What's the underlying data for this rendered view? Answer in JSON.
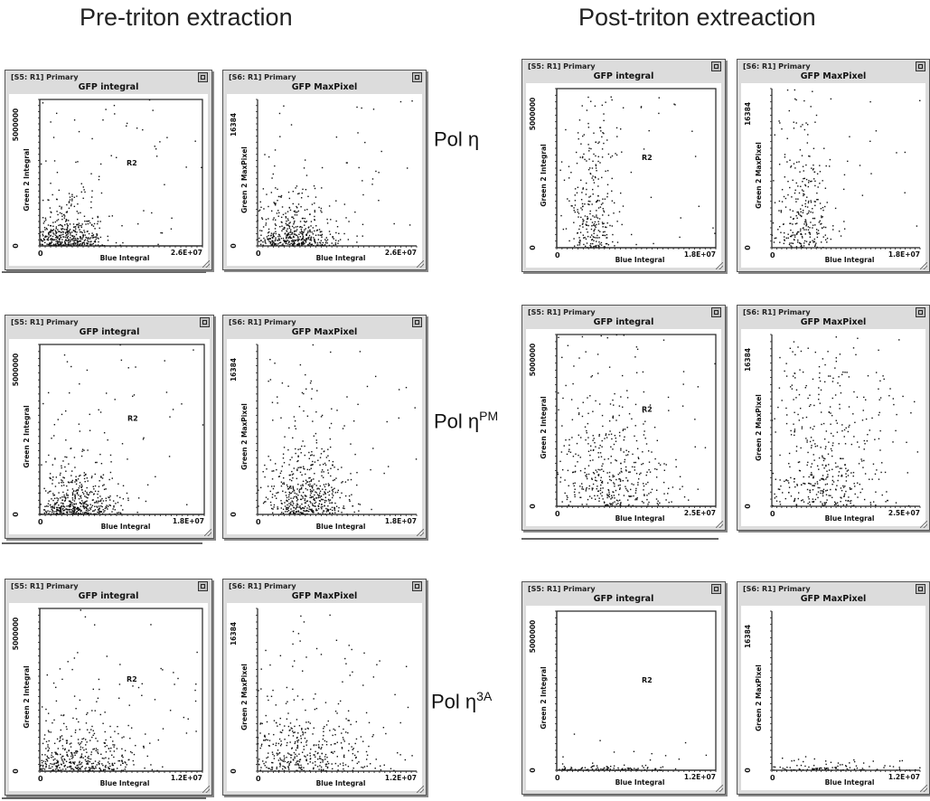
{
  "headers": {
    "pre": "Pre-triton extraction",
    "post": "Post-triton extreaction"
  },
  "rows": [
    {
      "label": "Pol η",
      "sup": ""
    },
    {
      "label": "Pol η",
      "sup": "PM"
    },
    {
      "label": "Pol η",
      "sup": "3A"
    }
  ],
  "chart_data": [
    {
      "type": "scatter",
      "window": "[S5: R1] Primary",
      "title": "GFP integral",
      "xlabel": "Blue Integral",
      "ylabel": "Green 2 Integral",
      "x_tick_labels": [
        "0",
        "2.6E+07"
      ],
      "y_tick_labels": [
        "0",
        "5000000"
      ],
      "xlim": [
        0,
        26000000
      ],
      "ylim": [
        0,
        5000000
      ],
      "gate": "R2",
      "gate_rect": [
        0,
        0,
        26000000,
        5000000
      ],
      "condition": "Pol η",
      "phase": "Pre-triton extraction",
      "points": {
        "n": 520,
        "seed": 11,
        "x_center": 4500000,
        "x_spread": 3000000,
        "y_decay": 500000,
        "outlier_max": 5000000
      }
    },
    {
      "type": "scatter",
      "window": "[S6: R1] Primary",
      "title": "GFP MaxPixel",
      "xlabel": "Blue Integral",
      "ylabel": "Green 2 MaxPixel",
      "x_tick_labels": [
        "0",
        "2.6E+07"
      ],
      "y_tick_labels": [
        "0",
        "16384"
      ],
      "xlim": [
        0,
        26000000
      ],
      "ylim": [
        0,
        16384
      ],
      "condition": "Pol η",
      "phase": "Pre-triton extraction",
      "points": {
        "n": 520,
        "seed": 12,
        "x_center": 5500000,
        "x_spread": 3500000,
        "y_decay": 1800,
        "outlier_max": 16384
      }
    },
    {
      "type": "scatter",
      "window": "[S5: R1] Primary",
      "title": "GFP integral",
      "xlabel": "Blue Integral",
      "ylabel": "Green 2 Integral",
      "x_tick_labels": [
        "0",
        "1.8E+07"
      ],
      "y_tick_labels": [
        "0",
        "5000000"
      ],
      "xlim": [
        0,
        18000000
      ],
      "ylim": [
        0,
        5000000
      ],
      "gate": "R2",
      "gate_rect": [
        0,
        0,
        18000000,
        5000000
      ],
      "condition": "Pol η",
      "phase": "Post-triton extreaction",
      "points": {
        "n": 320,
        "seed": 13,
        "x_center": 4000000,
        "x_spread": 1500000,
        "y_decay": 1600000,
        "outlier_max": 5000000
      }
    },
    {
      "type": "scatter",
      "window": "[S6: R1] Primary",
      "title": "GFP MaxPixel",
      "xlabel": "Blue Integral",
      "ylabel": "Green 2 MaxPixel",
      "x_tick_labels": [
        "0",
        "1.8E+07"
      ],
      "y_tick_labels": [
        "0",
        "16384"
      ],
      "xlim": [
        0,
        18000000
      ],
      "ylim": [
        0,
        16384
      ],
      "condition": "Pol η",
      "phase": "Post-triton extreaction",
      "points": {
        "n": 320,
        "seed": 14,
        "x_center": 4000000,
        "x_spread": 1800000,
        "y_decay": 5000,
        "outlier_max": 16384
      }
    },
    {
      "type": "scatter",
      "window": "[S5: R1] Primary",
      "title": "GFP integral",
      "xlabel": "Blue Integral",
      "ylabel": "Green 2 Integral",
      "x_tick_labels": [
        "0",
        "1.8E+07"
      ],
      "y_tick_labels": [
        "0",
        "5000000"
      ],
      "xlim": [
        0,
        18000000
      ],
      "ylim": [
        0,
        5000000
      ],
      "gate": "R2",
      "gate_rect": [
        0,
        0,
        18000000,
        5000000
      ],
      "condition": "Pol ηPM",
      "phase": "Pre-triton extraction",
      "points": {
        "n": 560,
        "seed": 15,
        "x_center": 4000000,
        "x_spread": 2400000,
        "y_decay": 500000,
        "outlier_max": 5000000
      }
    },
    {
      "type": "scatter",
      "window": "[S6: R1] Primary",
      "title": "GFP MaxPixel",
      "xlabel": "Blue Integral",
      "ylabel": "Green 2 MaxPixel",
      "x_tick_labels": [
        "0",
        "1.8E+07"
      ],
      "y_tick_labels": [
        "0",
        "16384"
      ],
      "xlim": [
        0,
        18000000
      ],
      "ylim": [
        0,
        16384
      ],
      "condition": "Pol ηPM",
      "phase": "Pre-triton extraction",
      "points": {
        "n": 560,
        "seed": 16,
        "x_center": 5500000,
        "x_spread": 2600000,
        "y_decay": 2600,
        "outlier_max": 16384
      }
    },
    {
      "type": "scatter",
      "window": "[S5: R1] Primary",
      "title": "GFP integral",
      "xlabel": "Blue Integral",
      "ylabel": "Green 2 Integral",
      "x_tick_labels": [
        "0",
        "2.5E+07"
      ],
      "y_tick_labels": [
        "0",
        "5000000"
      ],
      "xlim": [
        0,
        25000000
      ],
      "ylim": [
        0,
        5000000
      ],
      "gate": "R2",
      "gate_rect": [
        0,
        0,
        25000000,
        5000000
      ],
      "condition": "Pol ηPM",
      "phase": "Post-triton extreaction",
      "points": {
        "n": 480,
        "seed": 17,
        "x_center": 8000000,
        "x_spread": 5000000,
        "y_decay": 1500000,
        "outlier_max": 5000000
      }
    },
    {
      "type": "scatter",
      "window": "[S6: R1] Primary",
      "title": "GFP MaxPixel",
      "xlabel": "Blue Integral",
      "ylabel": "Green 2 MaxPixel",
      "x_tick_labels": [
        "0",
        "2.5E+07"
      ],
      "y_tick_labels": [
        "0",
        "16384"
      ],
      "xlim": [
        0,
        25000000
      ],
      "ylim": [
        0,
        16384
      ],
      "condition": "Pol ηPM",
      "phase": "Post-triton extreaction",
      "points": {
        "n": 480,
        "seed": 18,
        "x_center": 9000000,
        "x_spread": 5000000,
        "y_decay": 5500,
        "outlier_max": 16384
      }
    },
    {
      "type": "scatter",
      "window": "[S5: R1] Primary",
      "title": "GFP integral",
      "xlabel": "Blue Integral",
      "ylabel": "Green 2 Integral",
      "x_tick_labels": [
        "0",
        "1.2E+07"
      ],
      "y_tick_labels": [
        "0",
        "5000000"
      ],
      "xlim": [
        0,
        12000000
      ],
      "ylim": [
        0,
        5000000
      ],
      "gate": "R2",
      "gate_rect": [
        0,
        0,
        12000000,
        5000000
      ],
      "condition": "Pol η3A",
      "phase": "Pre-triton extraction",
      "points": {
        "n": 520,
        "seed": 19,
        "x_center": 2500000,
        "x_spread": 2500000,
        "y_decay": 600000,
        "outlier_max": 5000000
      }
    },
    {
      "type": "scatter",
      "window": "[S6: R1] Primary",
      "title": "GFP MaxPixel",
      "xlabel": "Blue Integral",
      "ylabel": "Green 2 MaxPixel",
      "x_tick_labels": [
        "0",
        "1.2E+07"
      ],
      "y_tick_labels": [
        "0",
        "16384"
      ],
      "xlim": [
        0,
        12000000
      ],
      "ylim": [
        0,
        16384
      ],
      "condition": "Pol η3A",
      "phase": "Pre-triton extraction",
      "points": {
        "n": 520,
        "seed": 20,
        "x_center": 3000000,
        "x_spread": 3000000,
        "y_decay": 2800,
        "outlier_max": 16384
      }
    },
    {
      "type": "scatter",
      "window": "[S5: R1] Primary",
      "title": "GFP integral",
      "xlabel": "Blue Integral",
      "ylabel": "Green 2 Integral",
      "x_tick_labels": [
        "0",
        "1.2E+07"
      ],
      "y_tick_labels": [
        "0",
        "5000000"
      ],
      "xlim": [
        0,
        12000000
      ],
      "ylim": [
        0,
        5000000
      ],
      "gate": "R2",
      "gate_rect": [
        0,
        0,
        12000000,
        5000000
      ],
      "condition": "Pol η3A",
      "phase": "Post-triton extreaction",
      "points": {
        "n": 110,
        "seed": 21,
        "x_center": 3500000,
        "x_spread": 2500000,
        "y_decay": 60000,
        "outlier_max": 1200000
      }
    },
    {
      "type": "scatter",
      "window": "[S6: R1] Primary",
      "title": "GFP MaxPixel",
      "xlabel": "Blue Integral",
      "ylabel": "Green 2 MaxPixel",
      "x_tick_labels": [
        "0",
        "1.2E+07"
      ],
      "y_tick_labels": [
        "0",
        "16384"
      ],
      "xlim": [
        0,
        12000000
      ],
      "ylim": [
        0,
        16384
      ],
      "condition": "Pol η3A",
      "phase": "Post-triton extreaction",
      "points": {
        "n": 110,
        "seed": 22,
        "x_center": 4000000,
        "x_spread": 2800000,
        "y_decay": 250,
        "outlier_max": 1500
      }
    }
  ]
}
